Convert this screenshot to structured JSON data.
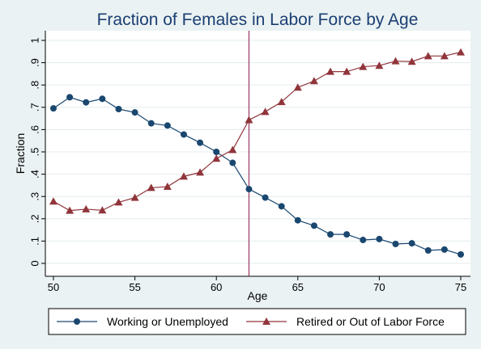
{
  "chart_data": {
    "type": "line",
    "title": "Fraction of Females in Labor Force by Age",
    "xlabel": "Age",
    "ylabel": "Fraction",
    "xlim": [
      50,
      75
    ],
    "ylim": [
      0,
      1
    ],
    "x_ticks": [
      50,
      55,
      60,
      65,
      70,
      75
    ],
    "x_tick_labels": [
      "50",
      "55",
      "60",
      "65",
      "70",
      "75"
    ],
    "y_ticks": [
      0,
      0.1,
      0.2,
      0.3,
      0.4,
      0.5,
      0.6,
      0.7,
      0.8,
      0.9,
      1
    ],
    "y_tick_labels": [
      "0",
      ".1",
      ".2",
      ".3",
      ".4",
      ".5",
      ".6",
      ".7",
      ".8",
      ".9",
      "1"
    ],
    "grid": "horizontal",
    "legend_position": "bottom",
    "reference_line_x": 62,
    "x": [
      50,
      51,
      52,
      53,
      54,
      55,
      56,
      57,
      58,
      59,
      60,
      61,
      62,
      63,
      64,
      65,
      66,
      67,
      68,
      69,
      70,
      71,
      72,
      73,
      74,
      75
    ],
    "series": [
      {
        "name": "Working or Unemployed",
        "marker": "circle",
        "color": "#1a476f",
        "values": [
          0.695,
          0.745,
          0.722,
          0.738,
          0.692,
          0.677,
          0.628,
          0.618,
          0.578,
          0.541,
          0.5,
          0.451,
          0.333,
          0.295,
          0.256,
          0.193,
          0.169,
          0.13,
          0.13,
          0.105,
          0.109,
          0.087,
          0.09,
          0.058,
          0.062,
          0.04
        ]
      },
      {
        "name": "Retired or Out of Labor Force",
        "marker": "triangle",
        "color": "#90353b",
        "values": [
          0.278,
          0.237,
          0.243,
          0.238,
          0.274,
          0.295,
          0.339,
          0.344,
          0.39,
          0.408,
          0.47,
          0.509,
          0.643,
          0.68,
          0.724,
          0.789,
          0.818,
          0.86,
          0.86,
          0.882,
          0.887,
          0.907,
          0.905,
          0.93,
          0.93,
          0.947
        ]
      }
    ]
  }
}
